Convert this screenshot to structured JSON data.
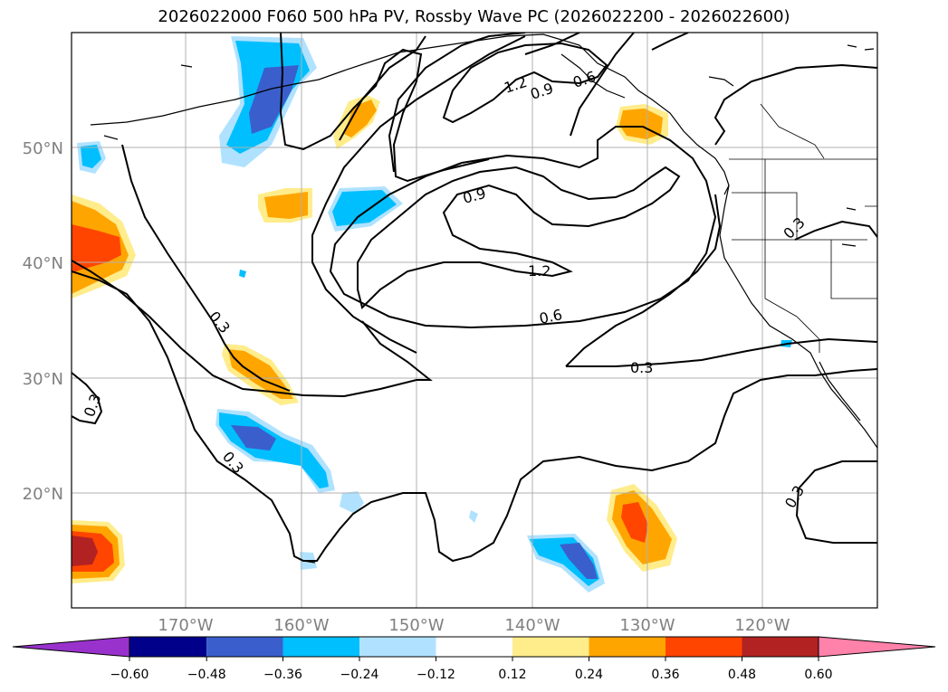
{
  "title": "2026022000 F060 500 hPa PV, Rossby Wave PC (2026022200 - 2026022600)",
  "axes": {
    "lat_labels": [
      "50°N",
      "40°N",
      "30°N",
      "20°N"
    ],
    "lon_labels": [
      "170°W",
      "160°W",
      "150°W",
      "140°W",
      "130°W",
      "120°W"
    ],
    "grid": true
  },
  "contours": {
    "line_color": "#000000",
    "labels": [
      "1.2",
      "0.9",
      "0.6",
      "0.9",
      "1.2",
      "0.6",
      "0.3",
      "0.3",
      "0.3",
      "0.3",
      "0.3",
      "0.3"
    ]
  },
  "colorbar": {
    "tick_labels": [
      "−0.60",
      "−0.48",
      "−0.36",
      "−0.24",
      "−0.12",
      "0.12",
      "0.24",
      "0.36",
      "0.48",
      "0.60"
    ],
    "colors": [
      "#9932cc",
      "#00008b",
      "#3a5fcd",
      "#00bfff",
      "#b0e2ff",
      "#ffffff",
      "#ffec8b",
      "#ffa500",
      "#ff4500",
      "#b22222",
      "#ff82ab"
    ],
    "extend": "both"
  }
}
